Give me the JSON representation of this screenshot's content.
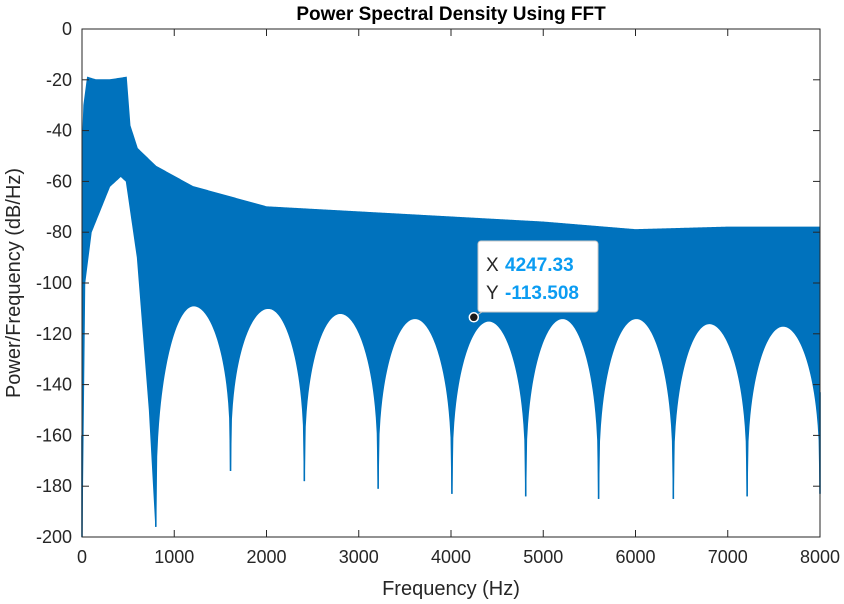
{
  "chart_data": {
    "type": "area",
    "title": "Power Spectral Density Using FFT",
    "xlabel": "Frequency (Hz)",
    "ylabel": "Power/Frequency (dB/Hz)",
    "xlim": [
      0,
      8000
    ],
    "ylim": [
      -200,
      0
    ],
    "xticks": [
      0,
      1000,
      2000,
      3000,
      4000,
      5000,
      6000,
      7000,
      8000
    ],
    "yticks": [
      0,
      -20,
      -40,
      -60,
      -80,
      -100,
      -120,
      -140,
      -160,
      -180,
      -200
    ],
    "grid": false,
    "color": "#0072bd",
    "series": [
      {
        "upper_envelope": [
          [
            0,
            -52
          ],
          [
            20,
            -30
          ],
          [
            60,
            -19
          ],
          [
            150,
            -20
          ],
          [
            300,
            -20
          ],
          [
            480,
            -19
          ],
          [
            520,
            -38
          ],
          [
            600,
            -47
          ],
          [
            800,
            -54
          ],
          [
            1200,
            -62
          ],
          [
            1600,
            -66
          ],
          [
            2000,
            -70
          ],
          [
            3000,
            -72
          ],
          [
            4000,
            -74
          ],
          [
            5000,
            -76
          ],
          [
            6000,
            -79
          ],
          [
            7000,
            -78
          ],
          [
            8000,
            -78
          ]
        ],
        "lower_envelope_peaks": [
          [
            0,
            -200
          ],
          [
            30,
            -100
          ],
          [
            100,
            -80
          ],
          [
            300,
            -62
          ],
          [
            420,
            -58
          ],
          [
            480,
            -60
          ],
          [
            600,
            -90
          ],
          [
            730,
            -150
          ],
          [
            800,
            -196
          ],
          [
            1210,
            -109
          ],
          [
            1610,
            -174
          ],
          [
            2020,
            -110
          ],
          [
            2410,
            -178
          ],
          [
            2800,
            -112
          ],
          [
            3210,
            -181
          ],
          [
            3610,
            -114
          ],
          [
            4010,
            -183
          ],
          [
            4410,
            -115
          ],
          [
            4810,
            -184
          ],
          [
            5210,
            -114
          ],
          [
            5600,
            -185
          ],
          [
            6010,
            -114
          ],
          [
            6410,
            -185
          ],
          [
            6800,
            -116
          ],
          [
            7210,
            -184
          ],
          [
            7600,
            -117
          ],
          [
            8000,
            -183
          ]
        ]
      }
    ],
    "datatip": {
      "x_label": "X",
      "x_value": "4247.33",
      "y_label": "Y",
      "y_value": "-113.508",
      "x": 4247.33,
      "y": -113.508
    }
  }
}
